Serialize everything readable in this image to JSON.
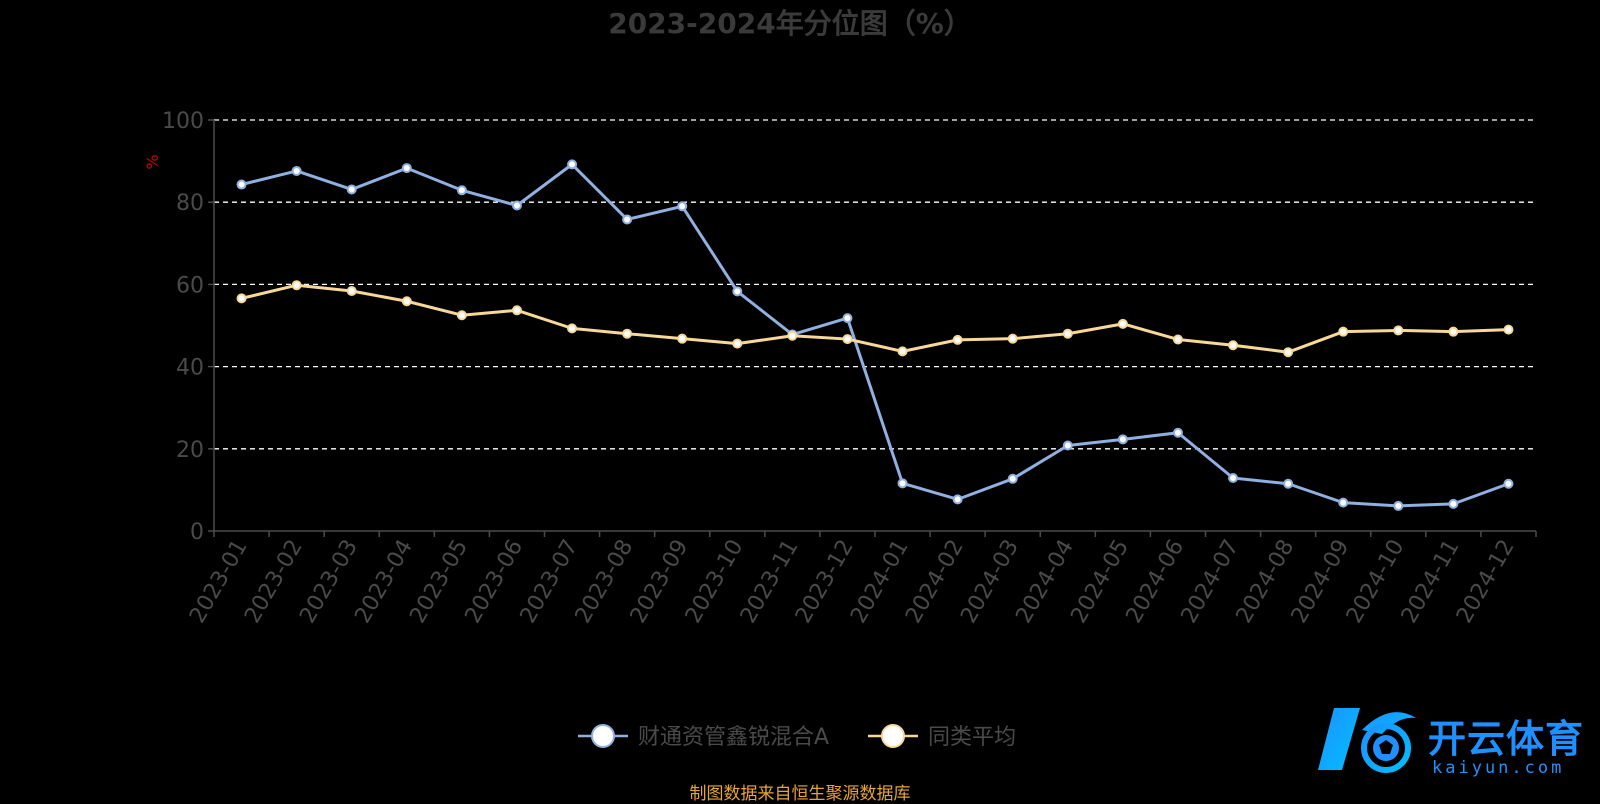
{
  "chart_data": {
    "type": "line",
    "title": "2023-2024年分位图（%）",
    "ylabel": "%",
    "ylim": [
      0,
      100
    ],
    "yticks": [
      0,
      20,
      40,
      60,
      80,
      100
    ],
    "grid": "horizontal-dashed",
    "legend_position": "bottom-center",
    "categories": [
      "2023-01",
      "2023-02",
      "2023-03",
      "2023-04",
      "2023-05",
      "2023-06",
      "2023-07",
      "2023-08",
      "2023-09",
      "2023-10",
      "2023-11",
      "2023-12",
      "2024-01",
      "2024-02",
      "2024-03",
      "2024-04",
      "2024-05",
      "2024-06",
      "2024-07",
      "2024-08",
      "2024-09",
      "2024-10",
      "2024-11",
      "2024-12"
    ],
    "series": [
      {
        "name": "财通资管鑫锐混合A",
        "color": "#8fb0e0",
        "values": [
          84.3,
          87.6,
          83.1,
          88.3,
          82.9,
          79.2,
          89.2,
          75.8,
          79.0,
          58.3,
          47.8,
          51.8,
          11.6,
          7.7,
          12.7,
          20.8,
          22.3,
          23.9,
          12.9,
          11.5,
          6.9,
          6.1,
          6.6,
          11.5
        ]
      },
      {
        "name": "同类平均",
        "color": "#f8d898",
        "values": [
          56.6,
          59.8,
          58.4,
          55.9,
          52.5,
          53.7,
          49.3,
          48.0,
          46.8,
          45.6,
          47.5,
          46.7,
          43.7,
          46.5,
          46.8,
          48.0,
          50.4,
          46.6,
          45.2,
          43.5,
          48.5,
          48.8,
          48.5,
          49.0
        ]
      }
    ]
  },
  "source_note": "制图数据来自恒生聚源数据库",
  "watermark": {
    "text": "开云体育",
    "sub": "kaiyun.com"
  },
  "colors": {
    "background": "#000000",
    "axis": "#4a4a4a",
    "tick_label": "#4a4a4a",
    "grid": "#ffffff",
    "ylabel": "#cc0000",
    "title": "#3a3a3a"
  }
}
